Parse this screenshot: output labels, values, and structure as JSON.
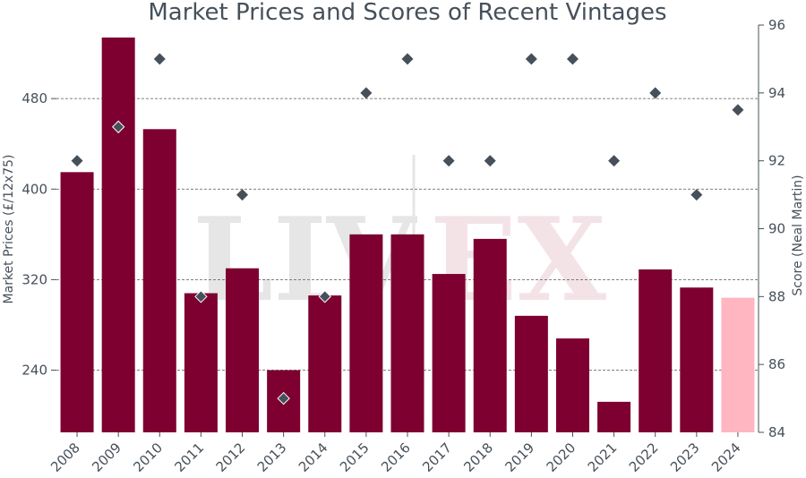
{
  "chart_data": {
    "type": "bar",
    "title": "Market Prices and Scores of Recent Vintages",
    "categories": [
      "2008",
      "2009",
      "2010",
      "2011",
      "2012",
      "2013",
      "2014",
      "2015",
      "2016",
      "2017",
      "2018",
      "2019",
      "2020",
      "2021",
      "2022",
      "2023",
      "2024"
    ],
    "series": [
      {
        "values": [
          415,
          534,
          453,
          308,
          330,
          240,
          306,
          360,
          360,
          325,
          356,
          288,
          268,
          212,
          329,
          313,
          304
        ],
        "axis": "left",
        "colors": {
          "default": "#7d0030",
          "last": "#ffb6c1"
        }
      },
      {
        "values": [
          92,
          93,
          95,
          88,
          91,
          85,
          88,
          94,
          95,
          92,
          92,
          95,
          95,
          92,
          94,
          91,
          93.5
        ],
        "axis": "right",
        "marker": "diamond",
        "color": "#46505a"
      }
    ],
    "ylabel": "Market Prices (£/12x75)",
    "ylim": [
      185,
      545
    ],
    "yticks": [
      240,
      320,
      400,
      480
    ],
    "y2label": "Score (Neal Martin)",
    "y2lim": [
      84,
      96
    ],
    "y2ticks": [
      84,
      86,
      88,
      90,
      92,
      94,
      96
    ],
    "gridlines": "horizontal-dashed",
    "watermark": "LIV|EX"
  }
}
